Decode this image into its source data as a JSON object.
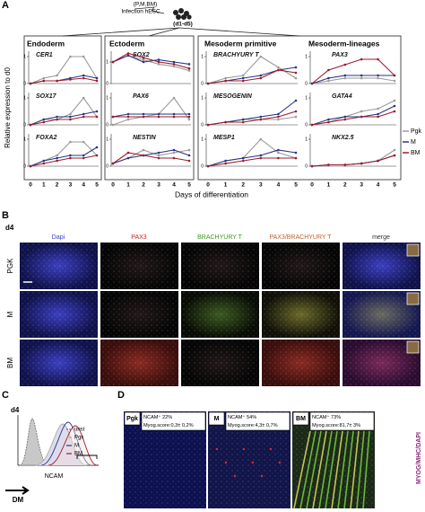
{
  "panel_a": {
    "label": "A",
    "treatment": "(P,M,BM)",
    "infection": "Infection hESC",
    "days": "(d1-d5)",
    "y_label": "Relative expression to d0",
    "x_label": "Days of differentiation",
    "x_ticks": [
      0,
      1,
      2,
      3,
      4,
      5
    ],
    "legend": [
      {
        "name": "Pgk",
        "color": "#9a9a9a"
      },
      {
        "name": "M",
        "color": "#2a3580"
      },
      {
        "name": "BM",
        "color": "#9b1d2e"
      }
    ],
    "groups": [
      {
        "title": "Endoderm",
        "charts": [
          {
            "gene": "CER1",
            "ylim": [
              0,
              1.2
            ],
            "yticks": [
              0,
              1
            ],
            "series": [
              {
                "values": [
                  0,
                  0.2,
                  0.3,
                  1.0,
                  1.0,
                  0.2
                ]
              },
              {
                "values": [
                  0,
                  0.1,
                  0.1,
                  0.2,
                  0.3,
                  0.2
                ]
              },
              {
                "values": [
                  0,
                  0.1,
                  0.1,
                  0.15,
                  0.2,
                  0.1
                ]
              }
            ]
          },
          {
            "gene": "SOX17",
            "ylim": [
              0,
              1.2
            ],
            "yticks": [
              0,
              1
            ],
            "series": [
              {
                "values": [
                  0,
                  0.2,
                  0.2,
                  0.4,
                  1.0,
                  0.3
                ]
              },
              {
                "values": [
                  0,
                  0.2,
                  0.3,
                  0.3,
                  0.4,
                  0.5
                ]
              },
              {
                "values": [
                  0,
                  0.1,
                  0.2,
                  0.2,
                  0.3,
                  0.3
                ]
              }
            ]
          },
          {
            "gene": "FOXA2",
            "ylim": [
              0,
              1.2
            ],
            "yticks": [
              0,
              1
            ],
            "series": [
              {
                "values": [
                  0,
                  0.2,
                  0.4,
                  0.9,
                  0.9,
                  0.4
                ]
              },
              {
                "values": [
                  0,
                  0.2,
                  0.3,
                  0.4,
                  0.4,
                  0.7
                ]
              },
              {
                "values": [
                  0,
                  0.1,
                  0.2,
                  0.3,
                  0.3,
                  0.4
                ]
              }
            ]
          }
        ]
      },
      {
        "title": "Ectoderm",
        "charts": [
          {
            "gene": "SOX2",
            "ylim": [
              0,
              1.5
            ],
            "yticks": [
              0,
              1
            ],
            "series": [
              {
                "values": [
                  1,
                  1.3,
                  1.1,
                  0.9,
                  0.8,
                  0.6
                ]
              },
              {
                "values": [
                  1,
                  1.3,
                  1.0,
                  1.1,
                  1.0,
                  0.9
                ]
              },
              {
                "values": [
                  1,
                  1.4,
                  1.2,
                  1.0,
                  0.9,
                  0.7
                ]
              }
            ]
          },
          {
            "gene": "PAX6",
            "ylim": [
              0,
              1.2
            ],
            "yticks": [
              0,
              1
            ],
            "series": [
              {
                "values": [
                  0,
                  0.2,
                  0.3,
                  0.4,
                  1.0,
                  0.2
                ]
              },
              {
                "values": [
                  0.3,
                  0.4,
                  0.4,
                  0.4,
                  0.4,
                  0.4
                ]
              },
              {
                "values": [
                  0.3,
                  0.3,
                  0.3,
                  0.3,
                  0.3,
                  0.3
                ]
              }
            ]
          },
          {
            "gene": "NESTIN",
            "ylim": [
              0,
              1.2
            ],
            "yticks": [
              0,
              1
            ],
            "series": [
              {
                "values": [
                  0.1,
                  0.3,
                  0.6,
                  0.4,
                  0.5,
                  0.6
                ]
              },
              {
                "values": [
                  0.1,
                  0.3,
                  0.4,
                  0.5,
                  0.6,
                  0.4
                ]
              },
              {
                "values": [
                  0.1,
                  0.5,
                  0.4,
                  0.3,
                  0.3,
                  0.2
                ]
              }
            ]
          }
        ]
      },
      {
        "title": "Mesoderm primitive",
        "charts": [
          {
            "gene": "BRACHYURY T",
            "ylim": [
              0,
              1.2
            ],
            "yticks": [
              0,
              1
            ],
            "series": [
              {
                "values": [
                  0,
                  0.2,
                  0.3,
                  1.0,
                  0.6,
                  0.2
                ]
              },
              {
                "values": [
                  0,
                  0.1,
                  0.2,
                  0.3,
                  0.5,
                  0.6
                ]
              },
              {
                "values": [
                  0,
                  0.1,
                  0.1,
                  0.2,
                  0.5,
                  0.4
                ]
              }
            ]
          },
          {
            "gene": "MESOGENIN",
            "ylim": [
              0,
              1.2
            ],
            "yticks": [
              0,
              1
            ],
            "series": [
              {
                "values": [
                  0,
                  0.1,
                  0.2,
                  0.2,
                  0.2,
                  0.3
                ]
              },
              {
                "values": [
                  0,
                  0.1,
                  0.2,
                  0.3,
                  0.4,
                  0.9
                ]
              },
              {
                "values": [
                  0,
                  0.1,
                  0.1,
                  0.2,
                  0.3,
                  0.5
                ]
              }
            ]
          },
          {
            "gene": "MESP1",
            "ylim": [
              0,
              1.2
            ],
            "yticks": [
              0,
              1
            ],
            "series": [
              {
                "values": [
                  0,
                  0.2,
                  0.3,
                  1.0,
                  0.5,
                  0.3
                ]
              },
              {
                "values": [
                  0,
                  0.2,
                  0.3,
                  0.4,
                  0.6,
                  0.5
                ]
              },
              {
                "values": [
                  0,
                  0.1,
                  0.2,
                  0.3,
                  0.3,
                  0.3
                ]
              }
            ]
          }
        ]
      },
      {
        "title": "Mesoderm-lineages",
        "charts": [
          {
            "gene": "PAX3",
            "ylim": [
              0,
              1.2
            ],
            "yticks": [
              0,
              1
            ],
            "series": [
              {
                "values": [
                  0,
                  0.1,
                  0.2,
                  0.2,
                  0.2,
                  0.1
                ]
              },
              {
                "values": [
                  0,
                  0.2,
                  0.3,
                  0.3,
                  0.3,
                  0.3
                ]
              },
              {
                "values": [
                  0,
                  0.5,
                  0.7,
                  0.9,
                  0.9,
                  0.3
                ]
              }
            ]
          },
          {
            "gene": "GATA4",
            "ylim": [
              0,
              1.2
            ],
            "yticks": [
              0,
              1
            ],
            "series": [
              {
                "values": [
                  0,
                  0.1,
                  0.3,
                  0.5,
                  0.6,
                  0.9
                ]
              },
              {
                "values": [
                  0,
                  0.2,
                  0.3,
                  0.3,
                  0.4,
                  0.7
                ]
              },
              {
                "values": [
                  0,
                  0.1,
                  0.2,
                  0.3,
                  0.3,
                  0.5
                ]
              }
            ]
          },
          {
            "gene": "NKX2.5",
            "ylim": [
              0,
              1.2
            ],
            "yticks": [
              0,
              1
            ],
            "series": [
              {
                "values": [
                  0,
                  0.05,
                  0.05,
                  0.1,
                  0.2,
                  0.6
                ]
              },
              {
                "values": [
                  0,
                  0.05,
                  0.05,
                  0.1,
                  0.2,
                  0.4
                ]
              },
              {
                "values": [
                  0,
                  0.05,
                  0.05,
                  0.1,
                  0.2,
                  0.4
                ]
              }
            ]
          }
        ]
      }
    ]
  },
  "panel_b": {
    "label": "B",
    "day": "d4",
    "channels": [
      "Dapi",
      "PAX3",
      "BRACHYURY T",
      "PAX3/BRACHYURY T",
      "merge"
    ],
    "rows": [
      "PGK",
      "M",
      "BM"
    ]
  },
  "panel_c": {
    "label": "C",
    "day": "d4",
    "legend": [
      "unst",
      "Pgk",
      "M",
      "BM"
    ],
    "x_label": "NCAM",
    "arrow_label": "DM"
  },
  "panel_d": {
    "label": "D",
    "stain": "MYOG/MHC/DAPI",
    "tiles": [
      {
        "name": "Pgk",
        "ncam": "NCAM⁺ 22%",
        "score": "Myog.score:0,3± 0,2%"
      },
      {
        "name": "M",
        "ncam": "NCAM⁺ 54%",
        "score": "Myog.score:4,3± 0,7%"
      },
      {
        "name": "BM",
        "ncam": "NCAM⁺ 73%",
        "score": "Myog.score:81,7± 3%"
      }
    ]
  }
}
